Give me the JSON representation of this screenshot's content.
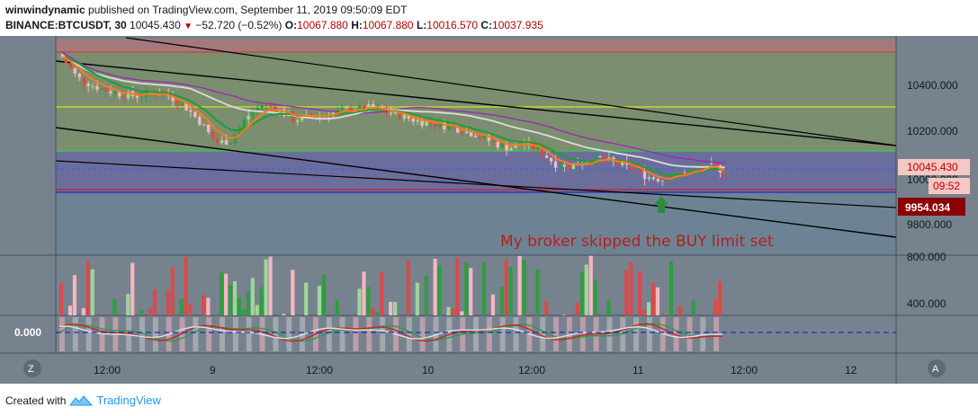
{
  "header": {
    "author": "winwindynamic",
    "published_text": "published on TradingView.com, September 11, 2019 09:50:09 EDT",
    "symbol": "BINANCE:BTCUSDT, 30",
    "last": "10045.430",
    "change": "−52.720 (−0.52%)",
    "o_label": "O:",
    "o_value": "10067.880",
    "h_label": "H:",
    "h_value": "10067.880",
    "l_label": "L:",
    "l_value": "10016.570",
    "c_label": "C:",
    "c_value": "10037.935"
  },
  "annotation": "My broker skipped the BUY limit set",
  "price_axis": {
    "ticks": [
      "10400.000",
      "10200.000",
      "10000.000",
      "9800.000"
    ],
    "current_price": "10045.430",
    "countdown": "09:52",
    "limit_price": "9954.034"
  },
  "volume_axis": {
    "ticks": [
      "800.000",
      "400.000"
    ]
  },
  "oscillator_axis": {
    "label": "0.000"
  },
  "time_axis": {
    "ticks": [
      "12:00",
      "9",
      "12:00",
      "10",
      "12:00",
      "11",
      "12:00",
      "12"
    ]
  },
  "corner_buttons": {
    "left": "Z",
    "right": "A"
  },
  "footer": {
    "created_with": "Created with",
    "brand": "TradingView"
  },
  "colors": {
    "bull": "#2e9e3f",
    "bear": "#d94a4a",
    "bull_light": "#9fd69a",
    "bear_light": "#f3b7c0",
    "ema_orange": "#ff7a1a",
    "ema_green": "#1f9d3a",
    "ma_white": "#dddddd",
    "ma_purple": "#9c27b0",
    "limit_red": "#b80000",
    "price_blue": "#2962ff"
  },
  "chart_data": {
    "type": "candlestick",
    "interval": "30",
    "x_labels": [
      "12:00",
      "9",
      "12:00",
      "10",
      "12:00",
      "11",
      "12:00",
      "12"
    ],
    "ylim": [
      9720,
      10560
    ],
    "price_ticks": [
      10400,
      10200,
      10000,
      9800
    ],
    "current_price": 10045.43,
    "buy_limit_price": 9954.034,
    "horizontal_levels": [
      10520,
      10300,
      10105,
      9990,
      9965
    ],
    "close_path": [
      10480,
      10400,
      10370,
      10350,
      10335,
      10330,
      10345,
      10330,
      10290,
      10230,
      10150,
      10160,
      10250,
      10300,
      10280,
      10240,
      10250,
      10260,
      10270,
      10280,
      10285,
      10270,
      10255,
      10235,
      10225,
      10215,
      10200,
      10180,
      10150,
      10130,
      10150,
      10120,
      10070,
      10060,
      10080,
      10090,
      10070,
      10050,
      10020,
      10010,
      10030,
      10045,
      10060,
      10045
    ],
    "volume_ylim": [
      250,
      860
    ],
    "volume_ticks": [
      800,
      400
    ],
    "oscillator_zero": 0.0
  }
}
